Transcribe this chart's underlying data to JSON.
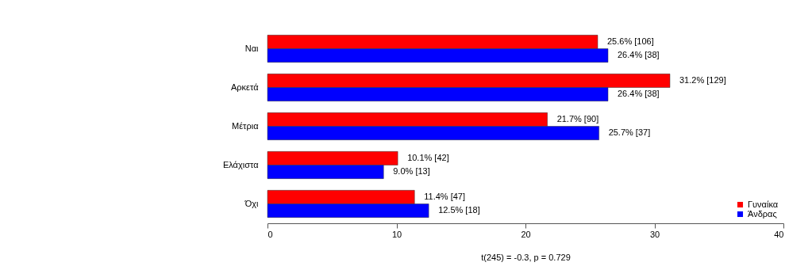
{
  "chart_data": {
    "type": "bar",
    "orientation": "horizontal",
    "categories": [
      "Ναι",
      "Αρκετά",
      "Μέτρια",
      "Ελάχιστα",
      "Όχι"
    ],
    "series": [
      {
        "name": "Γυναίκα",
        "color": "#ff0000",
        "values": [
          25.6,
          31.2,
          21.7,
          10.1,
          11.4
        ],
        "value_labels": [
          "25.6% [106]",
          "31.2% [129]",
          "21.7% [90]",
          "10.1% [42]",
          "11.4% [47]"
        ]
      },
      {
        "name": "Άνδρας",
        "color": "#0000ff",
        "values": [
          26.4,
          26.4,
          25.7,
          9.0,
          12.5
        ],
        "value_labels": [
          "26.4% [38]",
          "26.4% [38]",
          "25.7% [37]",
          "9.0% [13]",
          "12.5% [18]"
        ]
      }
    ],
    "xlim": [
      0,
      40
    ],
    "xticks": [
      0,
      10,
      20,
      30,
      40
    ],
    "legend": "bottom right",
    "grid": false,
    "annotations": [
      "t(245) = -0.3,   p = 0.729"
    ]
  }
}
